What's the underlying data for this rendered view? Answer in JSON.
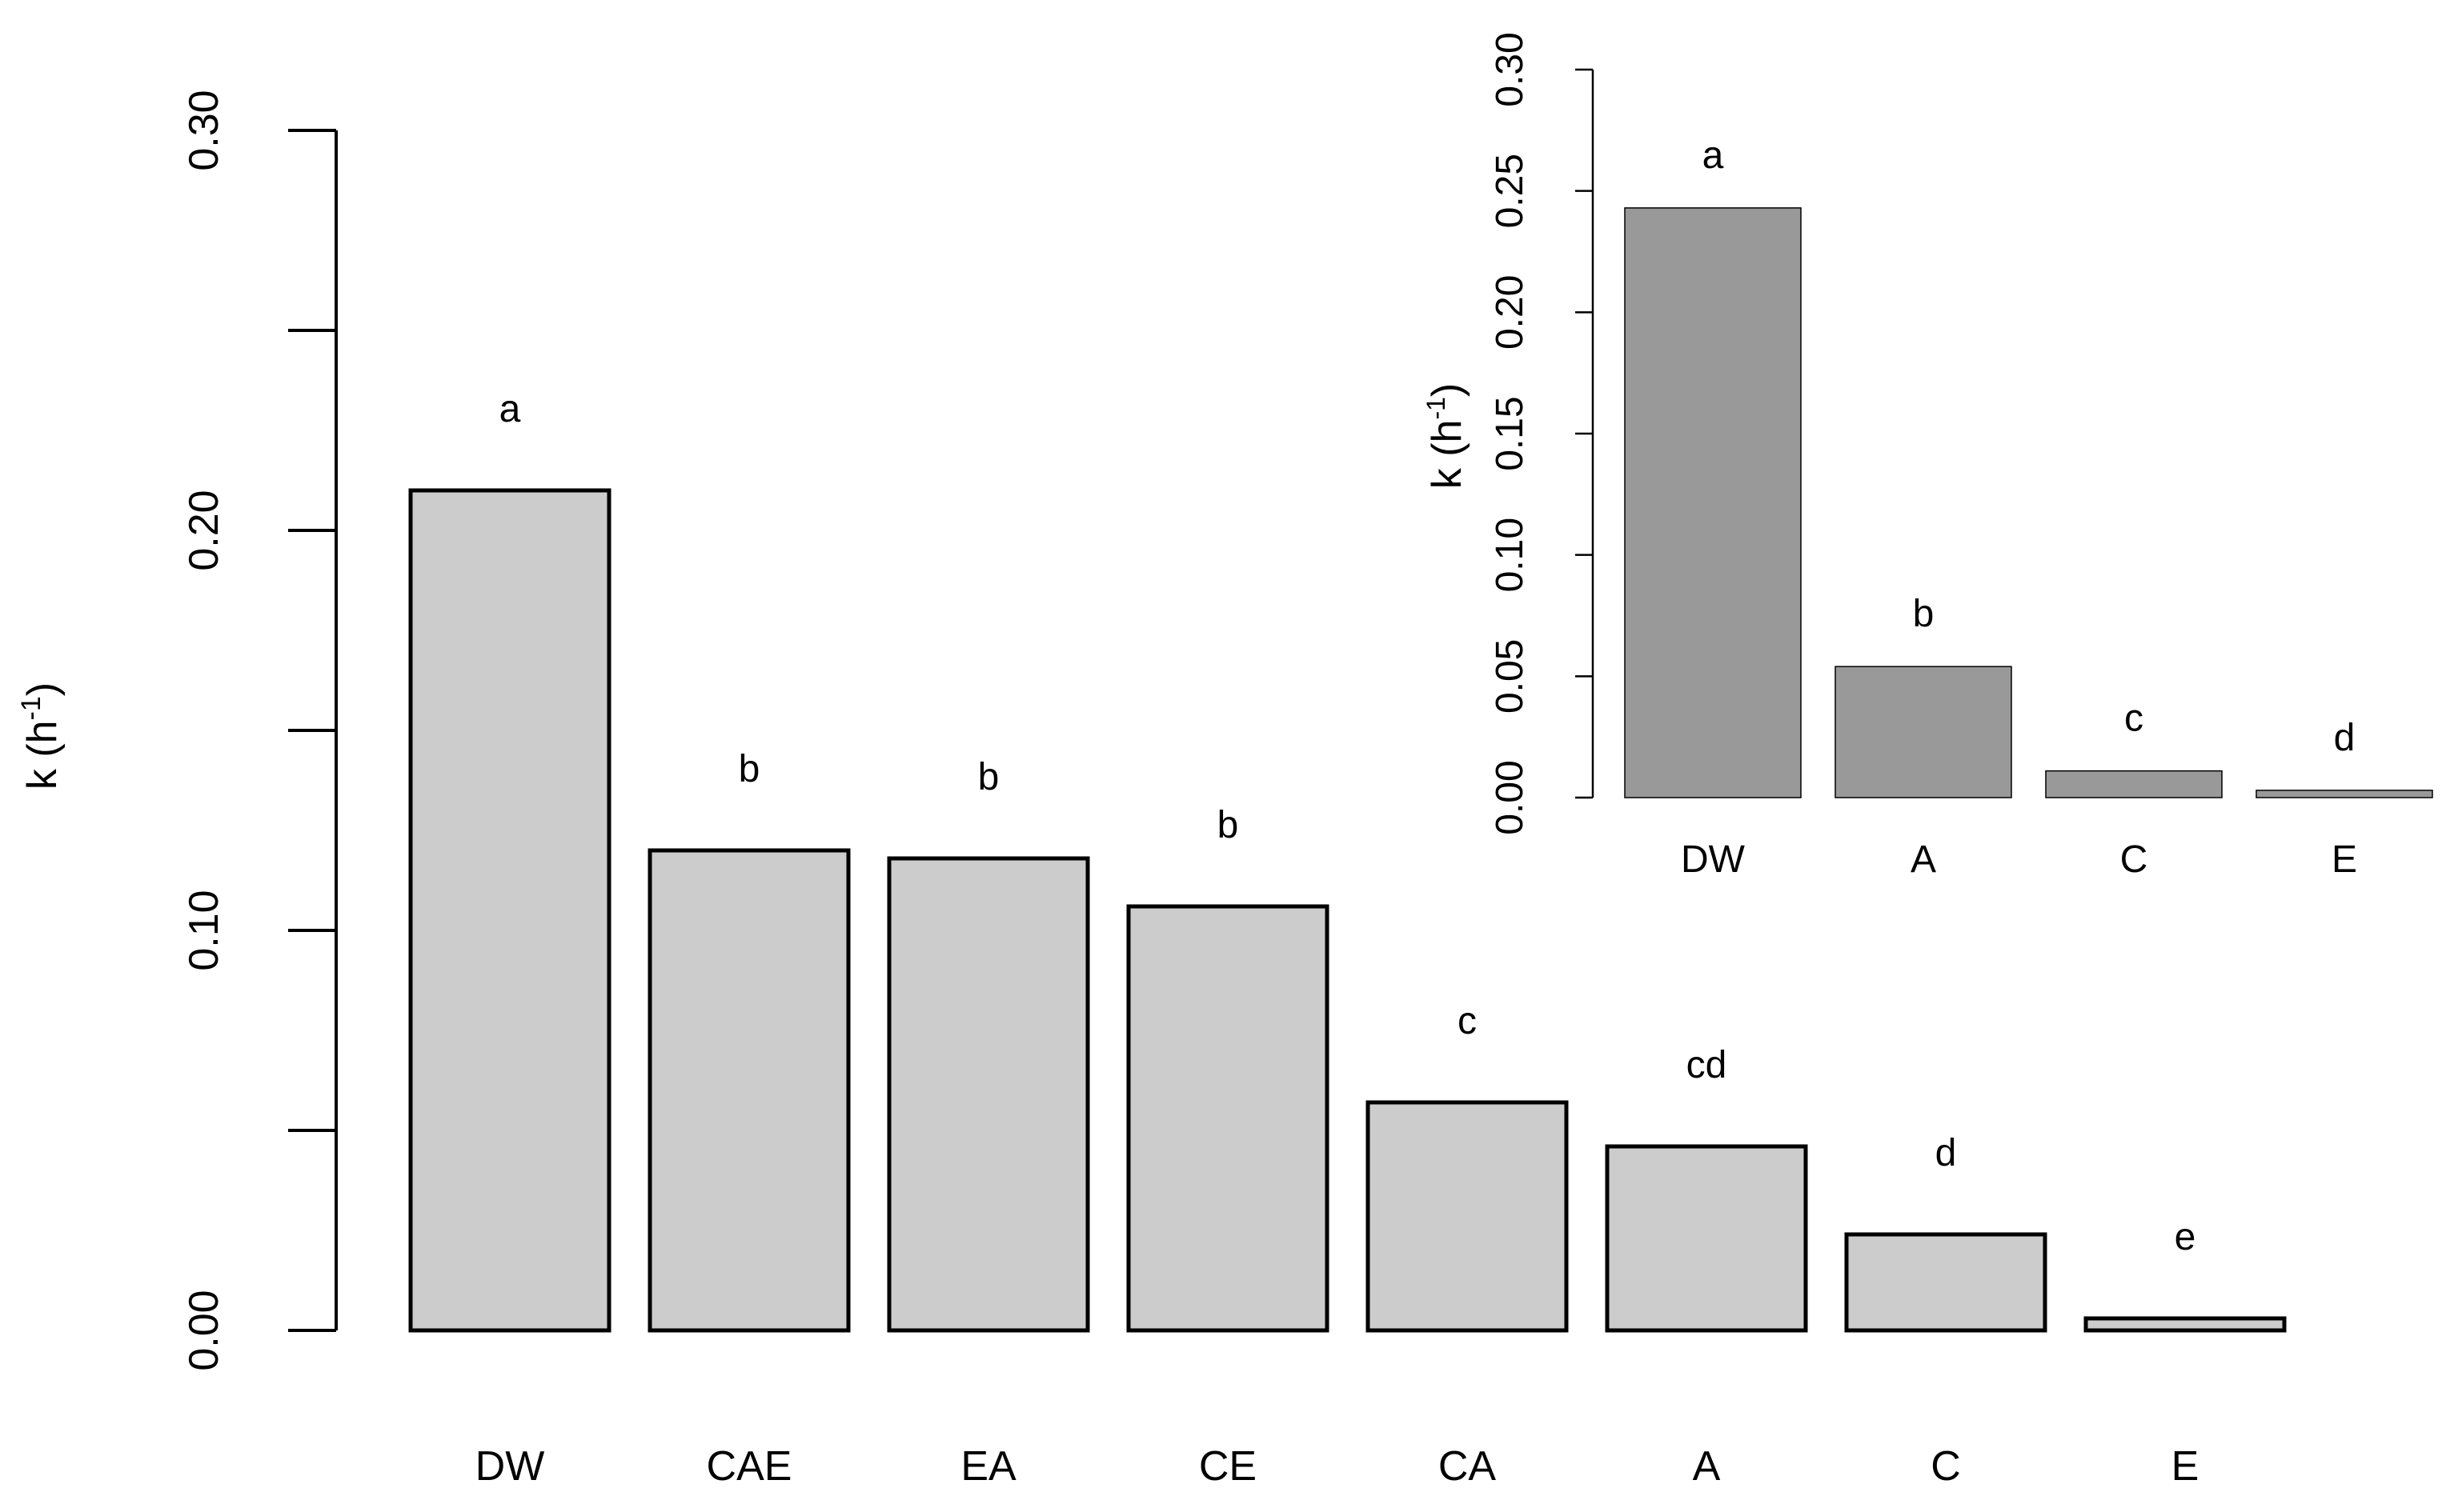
{
  "chart_data": [
    {
      "type": "bar",
      "ylabel": "k (h-1)",
      "ylabel_base": "k (h",
      "ylabel_sup": "-1",
      "ylabel_close": ")",
      "ylim": [
        0,
        0.3
      ],
      "yticks": [
        0.0,
        0.05,
        0.1,
        0.15,
        0.2,
        0.25,
        0.3
      ],
      "ytick_labels": [
        "0.00",
        "",
        "0.10",
        "",
        "0.20",
        "",
        "0.30"
      ],
      "categories": [
        "DW",
        "CAE",
        "EA",
        "CE",
        "CA",
        "A",
        "C",
        "E"
      ],
      "values": [
        0.21,
        0.12,
        0.118,
        0.106,
        0.057,
        0.046,
        0.024,
        0.003
      ],
      "significance": [
        "a",
        "b",
        "b",
        "b",
        "c",
        "cd",
        "d",
        "e"
      ],
      "bar_color": "#cccccc",
      "grid": false
    },
    {
      "type": "bar",
      "ylabel": "k (h-1)",
      "ylabel_base": "k (h",
      "ylabel_sup": "-1",
      "ylabel_close": ")",
      "ylim": [
        0,
        0.3
      ],
      "yticks": [
        0.0,
        0.05,
        0.1,
        0.15,
        0.2,
        0.25,
        0.3
      ],
      "ytick_labels": [
        "0.00",
        "0.05",
        "0.10",
        "0.15",
        "0.20",
        "0.25",
        "0.30"
      ],
      "categories": [
        "DW",
        "A",
        "C",
        "E"
      ],
      "values": [
        0.243,
        0.054,
        0.011,
        0.003
      ],
      "significance": [
        "a",
        "b",
        "c",
        "d"
      ],
      "bar_color": "#999999",
      "grid": false
    }
  ]
}
